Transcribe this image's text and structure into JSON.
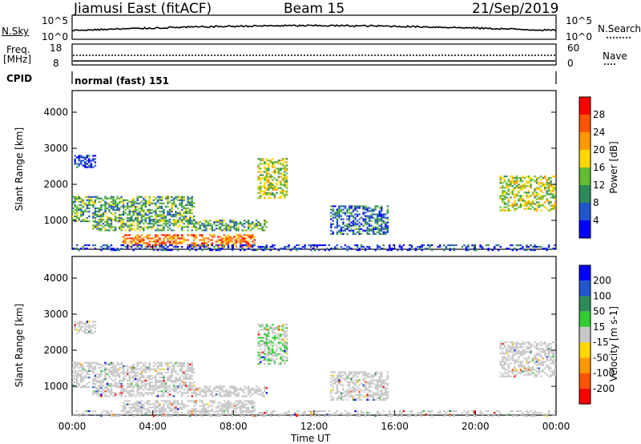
{
  "header": {
    "station": "Jiamusi East (fitACF)",
    "beam": "Beam 15",
    "date": "21/Sep/2019"
  },
  "sky_panel": {
    "left_label": "N.Sky",
    "left_top": "10^5",
    "left_bottom": "10^0",
    "right_top": "10^5",
    "right_bottom": "10^0",
    "right_label": "N.Search"
  },
  "freq_panel": {
    "left_label_1": "Freq.",
    "left_label_2": "[MHz]",
    "left_top": "18",
    "left_bottom": "8",
    "right_top": "60",
    "right_bottom": "0",
    "right_label": "Nave"
  },
  "cpid": {
    "label": "CPID",
    "value": "normal (fast) 151"
  },
  "x_axis": {
    "label": "Time UT",
    "ticks": [
      "00:00",
      "04:00",
      "08:00",
      "12:00",
      "16:00",
      "20:00",
      "00:00"
    ]
  },
  "colors": {
    "power": [
      "#0000ff",
      "#2255cc",
      "#2e8b57",
      "#66bb33",
      "#ffd700",
      "#ff9900",
      "#ff5500",
      "#ff0000"
    ],
    "velocity": [
      "#ff0000",
      "#ff5500",
      "#ff9900",
      "#ffd700",
      "#c8c8c8",
      "#33cc33",
      "#2e8b57",
      "#2255cc",
      "#0000ff"
    ],
    "gray_scatter": "#c8c8c8"
  },
  "chart_data": [
    {
      "type": "heatmap",
      "name": "power",
      "ylabel": "Slant Range [km]",
      "yticks": [
        "1000",
        "2000",
        "3000",
        "4000"
      ],
      "ylim": [
        200,
        4600
      ],
      "xlim": [
        0,
        24
      ],
      "colorbar": {
        "label": "Power [dB]",
        "ticks": [
          "4",
          "8",
          "12",
          "16",
          "20",
          "24",
          "28"
        ]
      },
      "echo_regions": [
        {
          "t": [
            0.0,
            6.0
          ],
          "r": [
            1000,
            1700
          ],
          "level": 3
        },
        {
          "t": [
            1.0,
            9.6
          ],
          "r": [
            750,
            1050
          ],
          "level": 3
        },
        {
          "t": [
            2.5,
            9.0
          ],
          "r": [
            300,
            650
          ],
          "level": 6
        },
        {
          "t": [
            0.1,
            1.2
          ],
          "r": [
            2500,
            2850
          ],
          "level": 1
        },
        {
          "t": [
            9.2,
            10.6
          ],
          "r": [
            1650,
            2750
          ],
          "level": 4
        },
        {
          "t": [
            12.8,
            15.6
          ],
          "r": [
            650,
            1450
          ],
          "level": 2
        },
        {
          "t": [
            21.2,
            24.0
          ],
          "r": [
            1300,
            2250
          ],
          "level": 4
        },
        {
          "t": [
            0.0,
            24.0
          ],
          "r": [
            200,
            350
          ],
          "level": 1
        }
      ]
    },
    {
      "type": "heatmap",
      "name": "velocity",
      "ylabel": "Slant Range [km]",
      "yticks": [
        "1000",
        "2000",
        "3000",
        "4000"
      ],
      "ylim": [
        200,
        4600
      ],
      "xlim": [
        0,
        24
      ],
      "colorbar": {
        "label": "Velocity [m s-1]",
        "ticks": [
          "200",
          "100",
          "50",
          "15",
          "-15",
          "-50",
          "-100",
          "-200"
        ]
      }
    }
  ]
}
